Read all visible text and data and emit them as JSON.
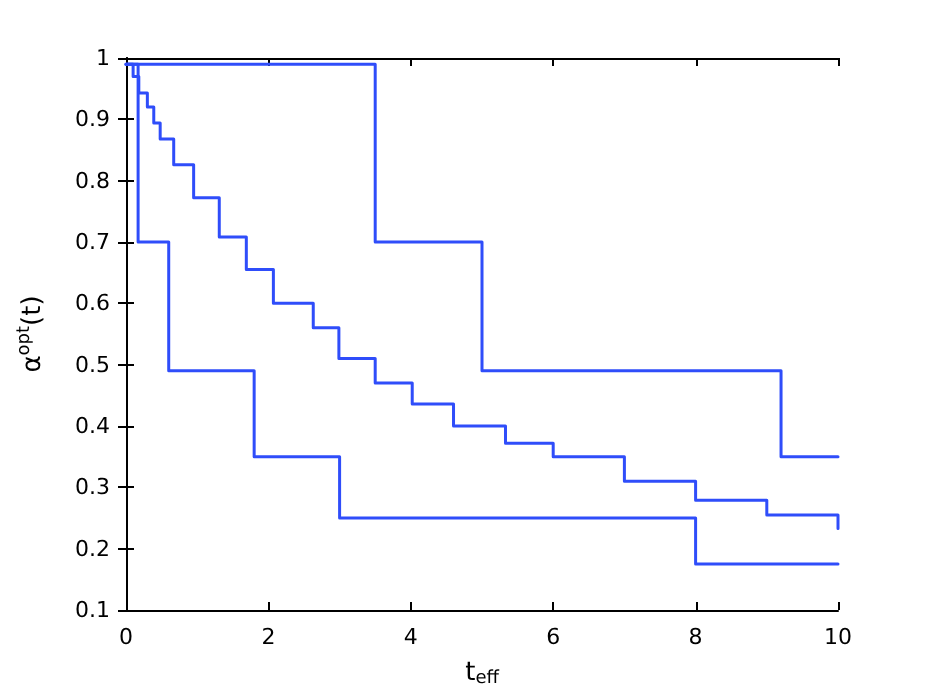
{
  "chart_data": {
    "type": "step",
    "xlabel": "t$_{eff}$",
    "ylabel": "α$^{opt}$(t)",
    "xlim": [
      0,
      10
    ],
    "xticks": [
      0,
      2,
      4,
      6,
      8,
      10
    ],
    "ylim": [
      0.1,
      1
    ],
    "yticks": [
      0.1,
      0.2,
      0.3,
      0.4,
      0.5,
      0.6,
      0.7,
      0.8,
      0.9,
      1
    ],
    "marker": "none",
    "line_style": "solid",
    "series": [
      {
        "color": "#2f4dfa",
        "x": [
          0,
          3.5,
          5,
          9.2,
          10
        ],
        "values": [
          0.99,
          0.7,
          0.49,
          0.35,
          0.35
        ]
      },
      {
        "color": "#2f4dfa",
        "x": [
          0,
          0.1,
          0.18,
          0.3,
          0.39,
          0.48,
          0.67,
          0.95,
          1.31,
          1.69,
          2.07,
          2.63,
          2.99,
          3.5,
          4.02,
          4.6,
          5.33,
          6,
          7,
          8,
          9,
          10
        ],
        "values": [
          0.99,
          0.97,
          0.943,
          0.92,
          0.894,
          0.868,
          0.826,
          0.772,
          0.708,
          0.655,
          0.6,
          0.56,
          0.51,
          0.47,
          0.436,
          0.4,
          0.372,
          0.35,
          0.31,
          0.279,
          0.255,
          0.233
        ]
      },
      {
        "color": "#2f4dfa",
        "x": [
          0,
          0.17,
          0.6,
          1.8,
          3,
          8,
          10
        ],
        "values": [
          0.99,
          0.7,
          0.49,
          0.35,
          0.25,
          0.175,
          0.175
        ]
      }
    ]
  }
}
